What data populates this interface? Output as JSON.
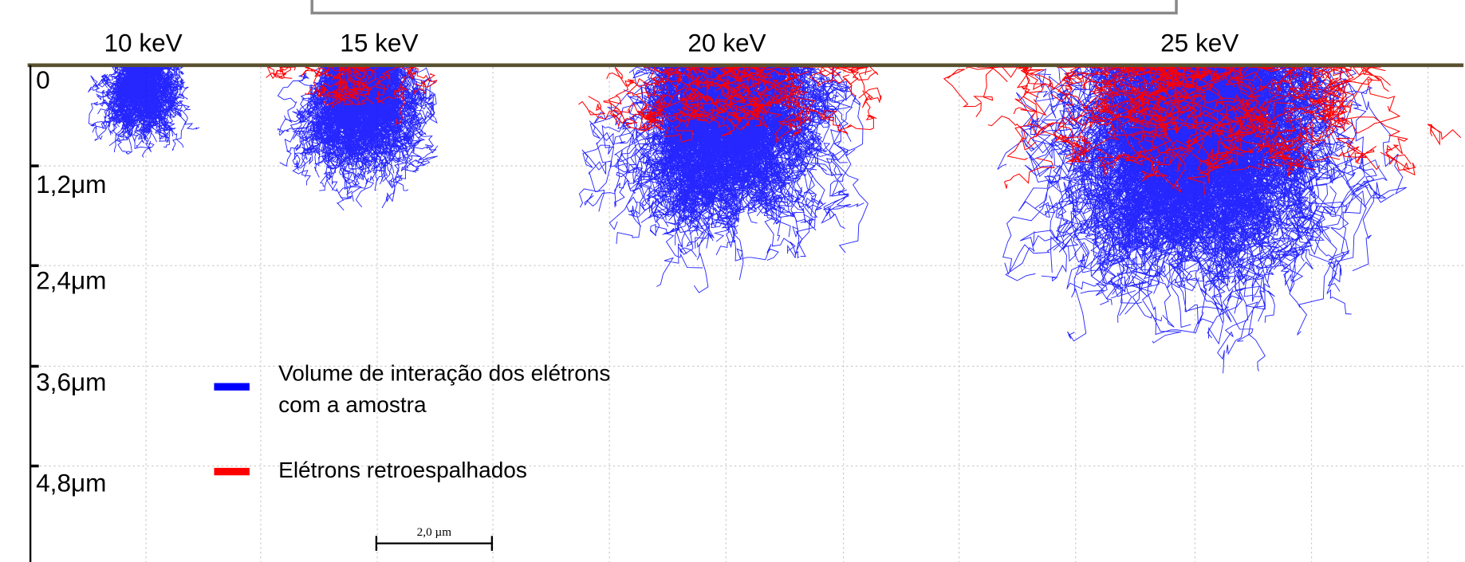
{
  "energies": [
    "10 keV",
    "15 keV",
    "20 keV",
    "25 keV"
  ],
  "depth_labels": [
    "0",
    "1,2μm",
    "2,4μm",
    "3,6μm",
    "4,8μm"
  ],
  "legend": [
    {
      "lines": [
        "Volume de interação dos elétrons",
        "com a amostra"
      ],
      "color": "#0000ff"
    },
    {
      "lines": [
        "Elétrons retroespalhados"
      ],
      "color": "#ff0000"
    }
  ],
  "scale_bar": "2,0 µm"
}
